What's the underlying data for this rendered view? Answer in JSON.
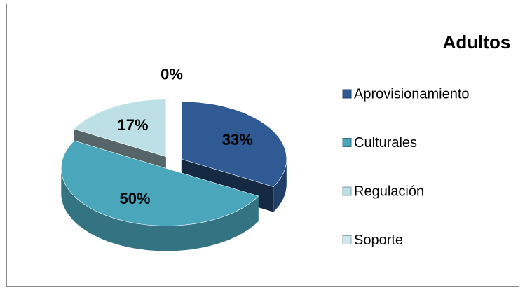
{
  "chart_data": {
    "type": "pie",
    "title": "Adultos",
    "categories": [
      "Aprovisionamiento",
      "Culturales",
      "Regulación",
      "Soporte"
    ],
    "values": [
      33,
      50,
      17,
      0
    ],
    "value_labels": [
      "33%",
      "50%",
      "17%",
      "0%"
    ],
    "colors": [
      "#2f5a94",
      "#4aa6ba",
      "#bde0e6",
      "#cde8ee"
    ],
    "legend": "right"
  }
}
